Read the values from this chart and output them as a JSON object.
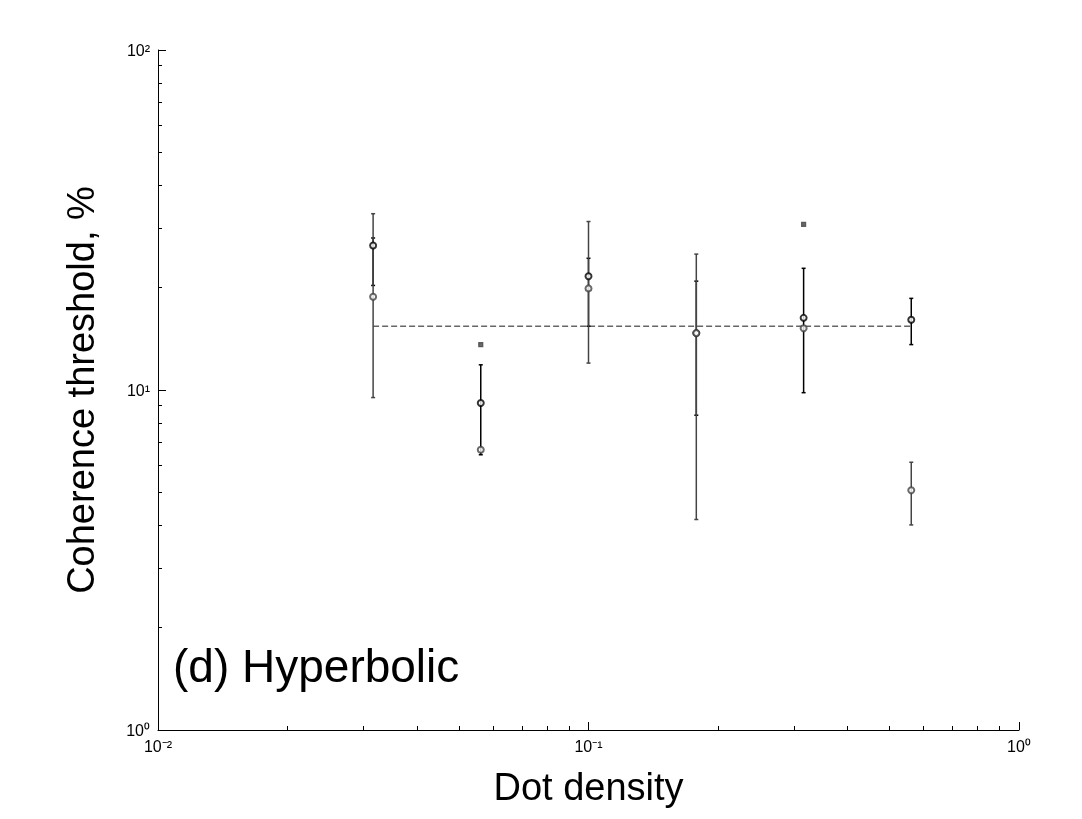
{
  "chart_data": {
    "type": "scatter",
    "xlabel": "Dot density",
    "ylabel": "Coherence threshold, %",
    "annotations": [
      "(d) Hyperbolic"
    ],
    "log": "xy",
    "grid": false,
    "marker": "circle",
    "x": [
      0.0316,
      0.0562,
      0.1,
      0.178,
      0.316,
      0.562
    ],
    "xlim": [
      0.01,
      1
    ],
    "xticks": [
      {
        "value": 0.01,
        "label": "10⁻²"
      },
      {
        "value": 0.1,
        "label": "10⁻¹"
      },
      {
        "value": 1,
        "label": "10⁰"
      }
    ],
    "ylim": [
      1,
      100
    ],
    "yticks": [
      {
        "value": 1,
        "label": "10⁰"
      },
      {
        "value": 10,
        "label": "10¹"
      },
      {
        "value": 100,
        "label": "10²"
      }
    ],
    "series": [
      {
        "color": "#000000",
        "values": [
          26.6,
          9.16,
          21.6,
          14.7,
          16.3,
          16.1
        ],
        "errors": [
          [
            20.3,
            28
          ],
          [
            6.45,
            11.86
          ],
          [
            15.4,
            24.4
          ],
          [
            8.43,
            20.9
          ],
          [
            9.82,
            22.8
          ],
          [
            13.6,
            18.6
          ]
        ]
      },
      {
        "color": "#444444",
        "values": [
          18.8,
          6.67,
          19.9,
          14.7,
          15.2,
          5.07
        ],
        "errors": [
          [
            9.5,
            33
          ],
          null,
          [
            12.0,
            31.3
          ],
          [
            4.16,
            25.1
          ],
          null,
          [
            4.01,
            6.13
          ]
        ]
      },
      {
        "color": "#444444",
        "marker": "square",
        "values": [
          null,
          13.6,
          null,
          null,
          30.7,
          null
        ]
      },
      {
        "type": "line",
        "color": "#666666",
        "line_style": "dashed",
        "marker": "none",
        "x": [
          0.0316,
          0.562
        ],
        "values": [
          15.4,
          15.4
        ]
      }
    ]
  }
}
